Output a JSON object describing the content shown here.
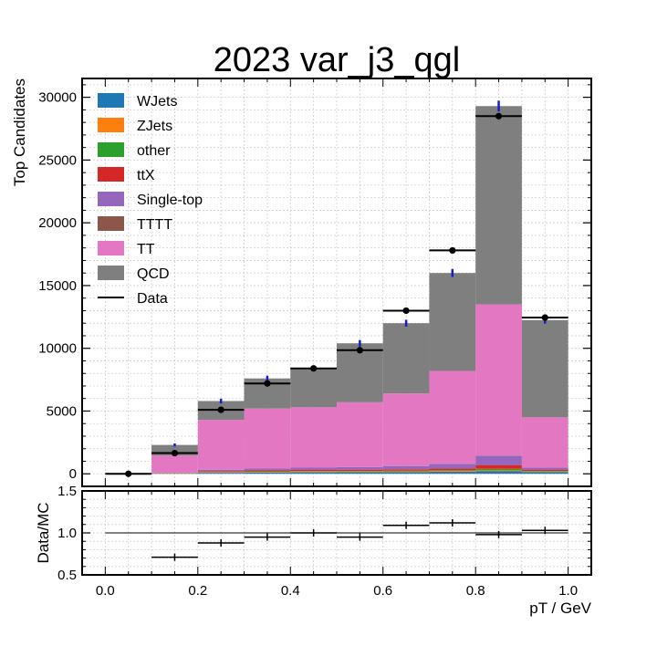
{
  "chart_data": [
    {
      "type": "bar",
      "stacked": true,
      "title": "2023 var_j3_qgl",
      "ylabel": "Top Candidates",
      "ylim": [
        -1000,
        31500
      ],
      "yticks": [
        0,
        5000,
        10000,
        15000,
        20000,
        25000,
        30000
      ],
      "bin_edges": [
        0.0,
        0.1,
        0.2,
        0.3,
        0.4,
        0.5,
        0.6,
        0.7,
        0.8,
        0.9,
        1.0
      ],
      "grid": true,
      "legend_position": "top-left",
      "series": [
        {
          "name": "WJets",
          "color": "#1f77b4",
          "values": [
            0,
            30,
            80,
            110,
            120,
            130,
            140,
            160,
            200,
            130
          ]
        },
        {
          "name": "ZJets",
          "color": "#ff7f0e",
          "values": [
            0,
            20,
            40,
            50,
            60,
            60,
            60,
            70,
            80,
            50
          ]
        },
        {
          "name": "other",
          "color": "#2ca02c",
          "values": [
            0,
            10,
            30,
            40,
            40,
            40,
            50,
            60,
            120,
            50
          ]
        },
        {
          "name": "ttX",
          "color": "#d62728",
          "values": [
            0,
            20,
            60,
            80,
            90,
            100,
            110,
            150,
            300,
            80
          ]
        },
        {
          "name": "Single-top",
          "color": "#9467bd",
          "values": [
            0,
            30,
            120,
            160,
            180,
            210,
            260,
            360,
            750,
            190
          ]
        },
        {
          "name": "TTTT",
          "color": "#8c564b",
          "values": [
            0,
            0,
            0,
            0,
            0,
            0,
            0,
            0,
            0,
            0
          ]
        },
        {
          "name": "TT",
          "color": "#e377c2",
          "values": [
            0,
            1350,
            3970,
            4760,
            4810,
            5160,
            5780,
            7400,
            12050,
            4000
          ]
        },
        {
          "name": "QCD",
          "color": "#7f7f7f",
          "values": [
            0,
            840,
            1500,
            2400,
            3100,
            4700,
            5600,
            7800,
            15800,
            7750
          ]
        }
      ],
      "data": {
        "name": "Data",
        "color": "#000000",
        "values": [
          0,
          1650,
          5100,
          7200,
          8400,
          9850,
          13000,
          17800,
          28500,
          12450
        ]
      }
    },
    {
      "type": "scatter",
      "xlabel": "pT / GeV",
      "ylabel": "Data/MC",
      "ylim": [
        0.5,
        1.5
      ],
      "yticks": [
        0.5,
        1.0,
        1.5
      ],
      "xlim": [
        -0.05,
        1.05
      ],
      "xticks": [
        0.0,
        0.2,
        0.4,
        0.6,
        0.8,
        1.0
      ],
      "ratio": [
        null,
        0.71,
        0.88,
        0.95,
        1.0,
        0.95,
        1.09,
        1.12,
        0.98,
        1.03
      ]
    }
  ]
}
